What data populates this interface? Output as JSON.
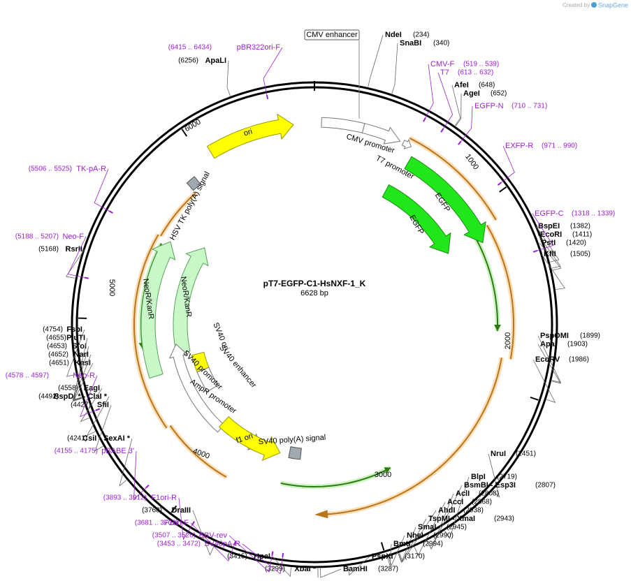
{
  "header": {
    "credit": "Created by",
    "brand": "SnapGene"
  },
  "map": {
    "name": "pT7-EGFP-C1-HsNXF-1_K",
    "length": "6628 bp",
    "ticks": [
      "1000",
      "2000",
      "3000",
      "4000",
      "5000",
      "6000"
    ]
  },
  "enzymes": [
    {
      "name": "NdeI",
      "position": "(234)"
    },
    {
      "name": "SnaBI",
      "position": "(340)"
    },
    {
      "name": "AfeI",
      "position": "(648)"
    },
    {
      "name": "AgeI",
      "position": "(652)"
    },
    {
      "name": "BspEI",
      "position": "(1382)"
    },
    {
      "name": "EcoRI",
      "position": "(1411)"
    },
    {
      "name": "PstI",
      "position": "(1420)"
    },
    {
      "name": "KflI",
      "position": "(1505)"
    },
    {
      "name": "PspOMI",
      "position": "(1899)"
    },
    {
      "name": "ApaI",
      "position": "(1903)"
    },
    {
      "name": "EcoRV",
      "position": "(1986)"
    },
    {
      "name": "NruI",
      "position": "(2451)"
    },
    {
      "name": "BlpI",
      "position": "(2719)"
    },
    {
      "name": "BsmBI - Esp3I",
      "position": "(2807)"
    },
    {
      "name": "AclI",
      "position": "(2808)"
    },
    {
      "name": "AccI",
      "position": "(2868)"
    },
    {
      "name": "AhdI",
      "position": "(2938)"
    },
    {
      "name": "TspMI - XmaI",
      "position": "(2943)"
    },
    {
      "name": "SmaI",
      "position": "(2945)"
    },
    {
      "name": "NheI",
      "position": "(2990)"
    },
    {
      "name": "BmtI",
      "position": "(2994)"
    },
    {
      "name": "PspXI",
      "position": "(3170)"
    },
    {
      "name": "BamHI",
      "position": "(3287)"
    },
    {
      "name": "XbaI *",
      "position": "(3299)"
    },
    {
      "name": "HpaI",
      "position": "(3415)"
    },
    {
      "name": "DraIII",
      "position": "(3768)"
    },
    {
      "name": "CsiI - SexAI *",
      "position": "(4241)"
    },
    {
      "name": "SfiI",
      "position": "(4427)"
    },
    {
      "name": "BspDI * - ClaI *",
      "position": "(4492)"
    },
    {
      "name": "EagI",
      "position": "(4558)"
    },
    {
      "name": "KasI",
      "position": "(4651)"
    },
    {
      "name": "NarI",
      "position": "(4652)"
    },
    {
      "name": "SfoI",
      "position": "(4653)"
    },
    {
      "name": "PluTI",
      "position": "(4655)"
    },
    {
      "name": "FspI",
      "position": "(4754)"
    },
    {
      "name": "RsrII",
      "position": "(5168)"
    },
    {
      "name": "ApaLI",
      "position": "(6256)"
    }
  ],
  "primers": [
    {
      "name": "CMV-F",
      "range": "(519 .. 539)"
    },
    {
      "name": "T7",
      "range": "(613 .. 632)"
    },
    {
      "name": "EGFP-N",
      "range": "(710 .. 731)"
    },
    {
      "name": "EXFP-R",
      "range": "(971 .. 990)"
    },
    {
      "name": "EGFP-C",
      "range": "(1318 .. 1339)"
    },
    {
      "name": "Neo-R",
      "range": "(4578 .. 4597)"
    },
    {
      "name": "Neo-F",
      "range": "(5188 .. 5207)"
    },
    {
      "name": "TK-pA-R",
      "range": "(5506 .. 5525)"
    },
    {
      "name": "pBR322ori-F",
      "range": "(6415 .. 6434)"
    },
    {
      "name": "pBABE 3'",
      "range": "(4155 .. 4175)"
    },
    {
      "name": "F1ori-R",
      "range": "(3893 .. 3912)"
    },
    {
      "name": "F1ori-F",
      "range": "(3681 .. 3702)"
    },
    {
      "name": "EBV-rev",
      "range": "(3507 .. 3526)"
    },
    {
      "name": "SV40pA-R",
      "range": "(3453 .. 3472)"
    }
  ],
  "features": [
    {
      "name": "CMV enhancer"
    },
    {
      "name": "CMV promoter"
    },
    {
      "name": "T7 promoter"
    },
    {
      "name": "EGFP"
    },
    {
      "name": "EGFP"
    },
    {
      "name": "ori"
    },
    {
      "name": "HSV TK poly(A) signal"
    },
    {
      "name": "NeoR/KanR"
    },
    {
      "name": "NeoR/KanR"
    },
    {
      "name": "SV40 ori"
    },
    {
      "name": "SV40 enhancer"
    },
    {
      "name": "SV40 promoter"
    },
    {
      "name": "AmpR promoter"
    },
    {
      "name": "f1 ori"
    },
    {
      "name": "SV40 poly(A) signal"
    }
  ]
}
